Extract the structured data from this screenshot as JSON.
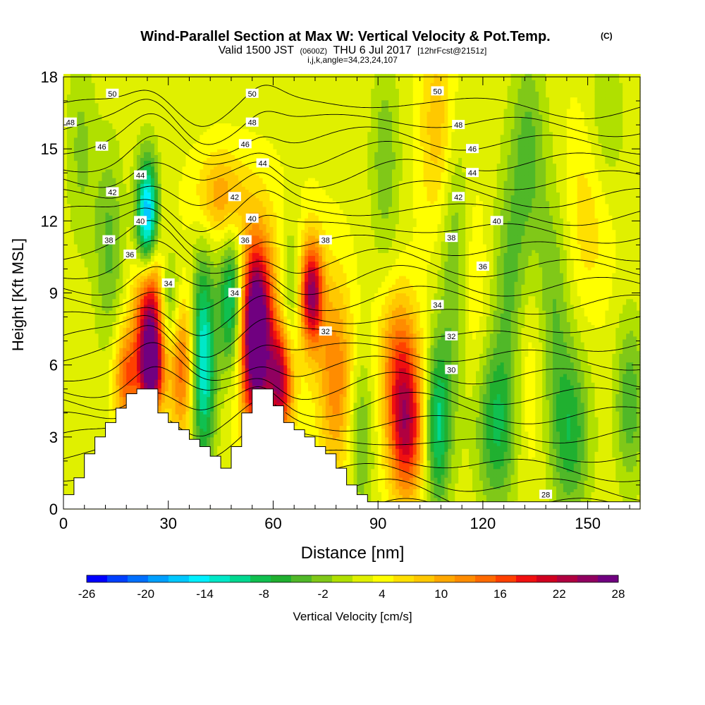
{
  "chart_data": {
    "type": "heatmap",
    "title": "Wind-Parallel Section at Max W: Vertical Velocity & Pot.Temp.",
    "title_mark": "(C)",
    "subtitle_parts": {
      "a": "Valid 1500 JST",
      "b": "(0600Z)",
      "c": "THU 6 Jul 2017",
      "d": "[12hrFcst@2151z]"
    },
    "subtitle2": "i,j,k,angle=34,23,24,107",
    "xlabel": "Distance [nm]",
    "ylabel": "Height [Kft MSL]",
    "xlim": [
      0,
      165
    ],
    "ylim": [
      0,
      18
    ],
    "x_ticks": [
      "0",
      "30",
      "60",
      "90",
      "120",
      "150"
    ],
    "y_ticks": [
      "0",
      "3",
      "6",
      "9",
      "12",
      "15",
      "18"
    ],
    "colorbar": {
      "label": "Vertical Velocity [cm/s]",
      "tick_labels": [
        "-26",
        "-20",
        "-14",
        "-8",
        "-2",
        "4",
        "10",
        "16",
        "22",
        "28"
      ],
      "colors": [
        "#0000ff",
        "#0040ff",
        "#0070ff",
        "#00a0ff",
        "#00c8ff",
        "#00f0ff",
        "#00e8c8",
        "#00d890",
        "#10c050",
        "#20b030",
        "#50b828",
        "#80c818",
        "#b0e000",
        "#e0f000",
        "#ffff00",
        "#ffe000",
        "#ffc800",
        "#ffa800",
        "#ff8c00",
        "#ff6a00",
        "#ff4000",
        "#f01010",
        "#d00020",
        "#b00040",
        "#900060",
        "#700080"
      ]
    },
    "terrain": [
      [
        0,
        0.6
      ],
      [
        3,
        0.6
      ],
      [
        3,
        1.3
      ],
      [
        6,
        1.3
      ],
      [
        6,
        2.3
      ],
      [
        9,
        2.3
      ],
      [
        9,
        3.0
      ],
      [
        12,
        3.0
      ],
      [
        12,
        3.6
      ],
      [
        15,
        3.6
      ],
      [
        15,
        4.2
      ],
      [
        18,
        4.2
      ],
      [
        18,
        4.8
      ],
      [
        21,
        4.8
      ],
      [
        21,
        5.0
      ],
      [
        27,
        5.0
      ],
      [
        27,
        4.0
      ],
      [
        30,
        4.0
      ],
      [
        30,
        3.6
      ],
      [
        33,
        3.6
      ],
      [
        33,
        3.3
      ],
      [
        36,
        3.3
      ],
      [
        36,
        2.9
      ],
      [
        39,
        2.9
      ],
      [
        39,
        2.6
      ],
      [
        42,
        2.6
      ],
      [
        42,
        2.2
      ],
      [
        45,
        2.2
      ],
      [
        45,
        1.7
      ],
      [
        48,
        1.7
      ],
      [
        48,
        2.6
      ],
      [
        51,
        2.6
      ],
      [
        51,
        4.0
      ],
      [
        54,
        4.0
      ],
      [
        54,
        5.0
      ],
      [
        60,
        5.0
      ],
      [
        60,
        4.3
      ],
      [
        63,
        4.3
      ],
      [
        63,
        3.6
      ],
      [
        66,
        3.6
      ],
      [
        66,
        3.3
      ],
      [
        69,
        3.3
      ],
      [
        69,
        3.0
      ],
      [
        72,
        3.0
      ],
      [
        72,
        2.6
      ],
      [
        75,
        2.6
      ],
      [
        75,
        2.3
      ],
      [
        78,
        2.3
      ],
      [
        78,
        1.7
      ],
      [
        81,
        1.7
      ],
      [
        81,
        1.0
      ],
      [
        84,
        1.0
      ],
      [
        84,
        0.6
      ],
      [
        87,
        0.6
      ],
      [
        87,
        0.3
      ],
      [
        165,
        0.3
      ]
    ],
    "w_features": [
      {
        "x": 25,
        "y": 7.8,
        "sx": 3.0,
        "sy": 2.3,
        "w": 24
      },
      {
        "x": 25,
        "y": 5.7,
        "sx": 2.2,
        "sy": 1.0,
        "w": 14
      },
      {
        "x": 34,
        "y": 6.0,
        "sx": 2.5,
        "sy": 2.2,
        "w": 12
      },
      {
        "x": 18,
        "y": 5.5,
        "sx": 2.5,
        "sy": 1.5,
        "w": 12
      },
      {
        "x": 55,
        "y": 7.2,
        "sx": 3.0,
        "sy": 2.6,
        "w": 28
      },
      {
        "x": 62,
        "y": 5.3,
        "sx": 2.5,
        "sy": 1.6,
        "w": 18
      },
      {
        "x": 71,
        "y": 9.0,
        "sx": 2.3,
        "sy": 1.5,
        "w": 20
      },
      {
        "x": 78,
        "y": 5.5,
        "sx": 3.5,
        "sy": 2.8,
        "w": 10
      },
      {
        "x": 98,
        "y": 3.3,
        "sx": 3.5,
        "sy": 2.0,
        "w": 18
      },
      {
        "x": 96,
        "y": 6.5,
        "sx": 4.0,
        "sy": 2.0,
        "w": 10
      },
      {
        "x": 45,
        "y": 13.0,
        "sx": 5.0,
        "sy": 1.3,
        "w": 8
      },
      {
        "x": 60,
        "y": 8.5,
        "sx": 8.0,
        "sy": 3.0,
        "w": 5
      },
      {
        "x": 107,
        "y": 16.0,
        "sx": 3.5,
        "sy": 3.0,
        "w": 6
      },
      {
        "x": 132,
        "y": 6.0,
        "sx": 5.0,
        "sy": 3.0,
        "w": 4
      },
      {
        "x": 150,
        "y": 12.5,
        "sx": 5.0,
        "sy": 3.0,
        "w": 4
      },
      {
        "x": 115,
        "y": 9.0,
        "sx": 4.0,
        "sy": 3.0,
        "w": 4
      },
      {
        "x": 24,
        "y": 12.0,
        "sx": 2.2,
        "sy": 1.8,
        "w": -22
      },
      {
        "x": 30,
        "y": 8.6,
        "sx": 2.5,
        "sy": 1.5,
        "w": -10
      },
      {
        "x": 40,
        "y": 6.2,
        "sx": 2.5,
        "sy": 3.0,
        "w": -16
      },
      {
        "x": 48,
        "y": 8.6,
        "sx": 2.5,
        "sy": 2.0,
        "w": -14
      },
      {
        "x": 65,
        "y": 9.0,
        "sx": 2.5,
        "sy": 2.2,
        "w": -8
      },
      {
        "x": 13,
        "y": 11.0,
        "sx": 3.0,
        "sy": 3.0,
        "w": -6
      },
      {
        "x": 107,
        "y": 3.5,
        "sx": 2.5,
        "sy": 2.5,
        "w": -12
      },
      {
        "x": 112,
        "y": 9.5,
        "sx": 3.0,
        "sy": 4.0,
        "w": -8
      },
      {
        "x": 85,
        "y": 3.0,
        "sx": 2.5,
        "sy": 2.5,
        "w": -6
      },
      {
        "x": 124,
        "y": 3.5,
        "sx": 4.0,
        "sy": 2.5,
        "w": -10
      },
      {
        "x": 128,
        "y": 9.0,
        "sx": 3.5,
        "sy": 3.5,
        "w": -7
      },
      {
        "x": 145,
        "y": 3.2,
        "sx": 4.0,
        "sy": 2.5,
        "w": -9
      },
      {
        "x": 140,
        "y": 8.5,
        "sx": 3.5,
        "sy": 3.5,
        "w": -6
      },
      {
        "x": 162,
        "y": 4.5,
        "sx": 3.0,
        "sy": 2.5,
        "w": -7
      },
      {
        "x": 133,
        "y": 15.0,
        "sx": 3.5,
        "sy": 3.0,
        "w": -6
      },
      {
        "x": 92,
        "y": 14.5,
        "sx": 3.0,
        "sy": 3.0,
        "w": -5
      },
      {
        "x": 5,
        "y": 15.0,
        "sx": 3.0,
        "sy": 3.0,
        "w": -4
      },
      {
        "x": 155,
        "y": 16.0,
        "sx": 4.0,
        "sy": 2.5,
        "w": -4
      }
    ],
    "w_background": 1.5,
    "theta_isolines": [
      26,
      27,
      28,
      29,
      30,
      31,
      32,
      33,
      34,
      35,
      36,
      37,
      38,
      39,
      40,
      41,
      42,
      43,
      44,
      45,
      46,
      47,
      48,
      49,
      50,
      51
    ],
    "theta_labels": [
      {
        "v": "50",
        "x": 14,
        "y": 17.3
      },
      {
        "v": "50",
        "x": 54,
        "y": 17.3
      },
      {
        "v": "50",
        "x": 107,
        "y": 17.4
      },
      {
        "v": "48",
        "x": 2,
        "y": 16.1
      },
      {
        "v": "48",
        "x": 54,
        "y": 16.1
      },
      {
        "v": "48",
        "x": 113,
        "y": 16.0
      },
      {
        "v": "46",
        "x": 11,
        "y": 15.1
      },
      {
        "v": "46",
        "x": 52,
        "y": 15.2
      },
      {
        "v": "46",
        "x": 117,
        "y": 15.0
      },
      {
        "v": "44",
        "x": 22,
        "y": 13.9
      },
      {
        "v": "44",
        "x": 57,
        "y": 14.4
      },
      {
        "v": "44",
        "x": 117,
        "y": 14.0
      },
      {
        "v": "42",
        "x": 14,
        "y": 13.2
      },
      {
        "v": "42",
        "x": 49,
        "y": 13.0
      },
      {
        "v": "42",
        "x": 113,
        "y": 13.0
      },
      {
        "v": "40",
        "x": 22,
        "y": 12.0
      },
      {
        "v": "40",
        "x": 54,
        "y": 12.1
      },
      {
        "v": "40",
        "x": 124,
        "y": 12.0
      },
      {
        "v": "38",
        "x": 13,
        "y": 11.2
      },
      {
        "v": "38",
        "x": 75,
        "y": 11.2
      },
      {
        "v": "38",
        "x": 111,
        "y": 11.3
      },
      {
        "v": "36",
        "x": 19,
        "y": 10.6
      },
      {
        "v": "36",
        "x": 52,
        "y": 11.2
      },
      {
        "v": "36",
        "x": 120,
        "y": 10.1
      },
      {
        "v": "34",
        "x": 30,
        "y": 9.4
      },
      {
        "v": "34",
        "x": 49,
        "y": 9.0
      },
      {
        "v": "34",
        "x": 107,
        "y": 8.5
      },
      {
        "v": "32",
        "x": 75,
        "y": 7.4
      },
      {
        "v": "32",
        "x": 111,
        "y": 7.2
      },
      {
        "v": "30",
        "x": 111,
        "y": 5.8
      },
      {
        "v": "28",
        "x": 138,
        "y": 0.6
      }
    ]
  }
}
